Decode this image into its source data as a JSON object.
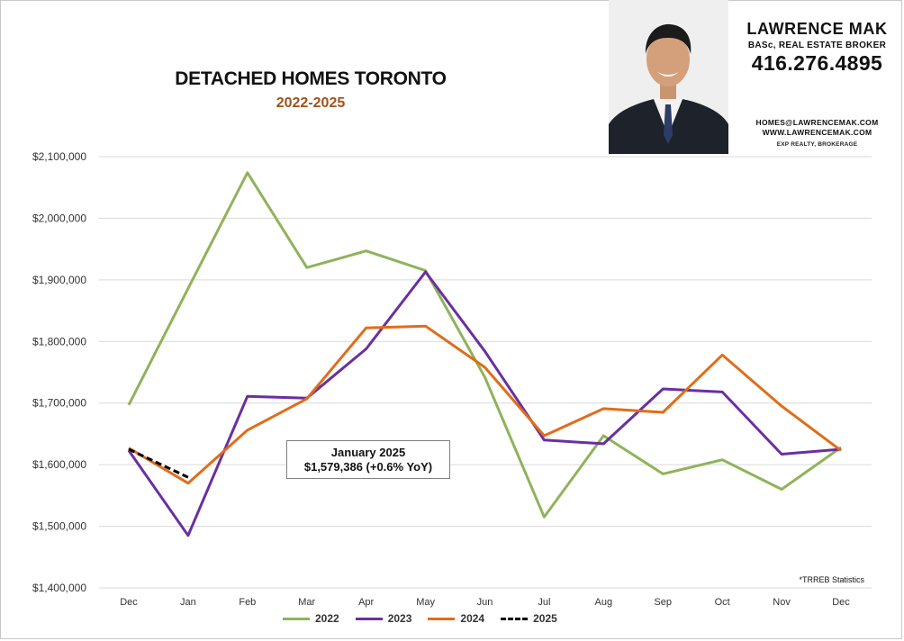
{
  "header": {
    "title": "DETACHED HOMES TORONTO",
    "subtitle": "2022-2025"
  },
  "agent": {
    "name": "LAWRENCE MAK",
    "title": "BASc, REAL ESTATE BROKER",
    "phone": "416.276.4895",
    "email": "HOMES@LAWRENCEMAK.COM",
    "website": "WWW.LAWRENCEMAK.COM",
    "brokerage": "EXP REALTY, BROKERAGE"
  },
  "callout": {
    "line1": "January 2025",
    "line2": "$1,579,386 (+0.6% YoY)"
  },
  "source_note": "*TRREB Statistics",
  "chart_data": {
    "type": "line",
    "title": "DETACHED HOMES TORONTO",
    "subtitle": "2022-2025",
    "categories": [
      "Dec",
      "Jan",
      "Feb",
      "Mar",
      "Apr",
      "May",
      "Jun",
      "Jul",
      "Aug",
      "Sep",
      "Oct",
      "Nov",
      "Dec"
    ],
    "ylim": [
      1400000,
      2100000
    ],
    "yticks": [
      1400000,
      1500000,
      1600000,
      1700000,
      1800000,
      1900000,
      2000000,
      2100000
    ],
    "ytick_labels": [
      "$1,400,000",
      "$1,500,000",
      "$1,600,000",
      "$1,700,000",
      "$1,800,000",
      "$1,900,000",
      "$2,000,000",
      "$2,100,000"
    ],
    "grid": true,
    "legend_position": "bottom",
    "series": [
      {
        "name": "2022",
        "color": "#8fb35a",
        "dash": "solid",
        "values": [
          1697000,
          1886000,
          2074000,
          1920000,
          1947000,
          1915000,
          1742000,
          1515000,
          1647000,
          1585000,
          1608000,
          1560000,
          1628000
        ]
      },
      {
        "name": "2023",
        "color": "#6a2fa0",
        "dash": "solid",
        "values": [
          1623000,
          1485000,
          1711000,
          1708000,
          1788000,
          1913000,
          1784000,
          1640000,
          1634000,
          1723000,
          1718000,
          1617000,
          1625000
        ]
      },
      {
        "name": "2024",
        "color": "#e06d1a",
        "dash": "solid",
        "values": [
          1627000,
          1570000,
          1656000,
          1707000,
          1822000,
          1825000,
          1758000,
          1647000,
          1691000,
          1685000,
          1778000,
          1695000,
          1623000
        ]
      },
      {
        "name": "2025",
        "color": "#000000",
        "dash": "dashed",
        "values": [
          1625000,
          1579386,
          null,
          null,
          null,
          null,
          null,
          null,
          null,
          null,
          null,
          null,
          null
        ]
      }
    ]
  }
}
